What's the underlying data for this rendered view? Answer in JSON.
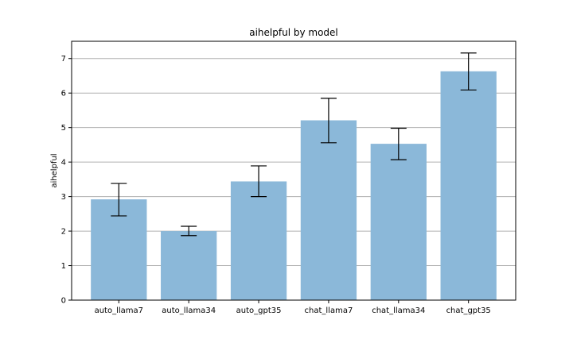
{
  "chart_data": {
    "type": "bar",
    "title": "aihelpful by model",
    "xlabel": "",
    "ylabel": "aihelpful",
    "categories": [
      "auto_llama7",
      "auto_llama34",
      "auto_gpt35",
      "chat_llama7",
      "chat_llama34",
      "chat_gpt35"
    ],
    "values": [
      2.92,
      2.0,
      3.44,
      5.21,
      4.53,
      6.63
    ],
    "error_low": [
      2.44,
      1.87,
      3.0,
      4.56,
      4.07,
      6.09
    ],
    "error_high": [
      3.38,
      2.14,
      3.89,
      5.85,
      4.98,
      7.16
    ],
    "ylim": [
      0,
      7.5
    ],
    "yticks": [
      "0",
      "1",
      "2",
      "3",
      "4",
      "5",
      "6",
      "7"
    ],
    "grid": "horizontal",
    "legend": "none",
    "colors": {
      "bar": "#8bb8d9",
      "grid": "#b0b0b0",
      "axis": "#000000",
      "errorbar": "#000000"
    }
  }
}
